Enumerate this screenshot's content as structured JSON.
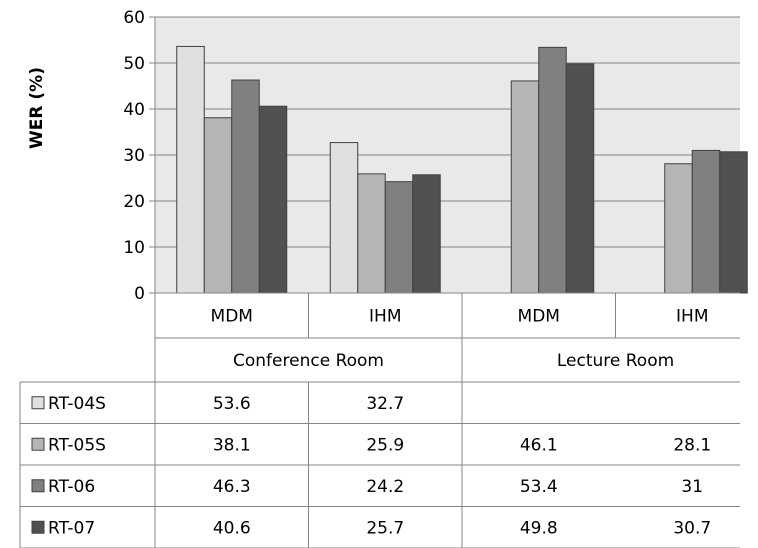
{
  "chart_data": {
    "type": "bar",
    "ylabel": "WER (%)",
    "ylim": [
      0,
      60
    ],
    "yticks": [
      0,
      10,
      20,
      30,
      40,
      50,
      60
    ],
    "grid": true,
    "groups": [
      {
        "label": "Conference Room",
        "categories": [
          "MDM",
          "IHM"
        ]
      },
      {
        "label": "Lecture Room",
        "categories": [
          "MDM",
          "IHM"
        ]
      }
    ],
    "categories": [
      "MDM",
      "IHM",
      "MDM",
      "IHM"
    ],
    "series": [
      {
        "name": "RT-04S",
        "color": "#e0e0e0",
        "values": [
          53.6,
          32.7,
          null,
          null
        ]
      },
      {
        "name": "RT-05S",
        "color": "#b5b5b5",
        "values": [
          38.1,
          25.9,
          46.1,
          28.1
        ]
      },
      {
        "name": "RT-06",
        "color": "#808080",
        "values": [
          46.3,
          24.2,
          53.4,
          31
        ]
      },
      {
        "name": "RT-07",
        "color": "#505050",
        "values": [
          40.6,
          25.7,
          49.8,
          30.7
        ]
      }
    ],
    "legend": "data-table-left"
  }
}
